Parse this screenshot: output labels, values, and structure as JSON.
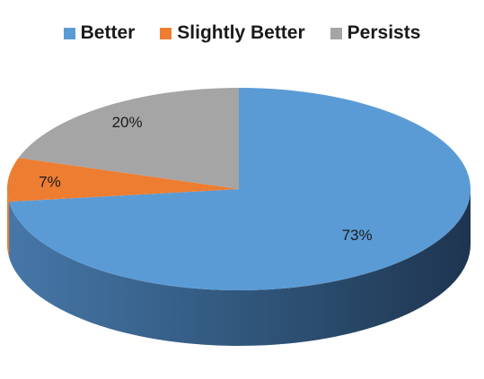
{
  "chart_data": {
    "type": "pie",
    "variant": "3d",
    "legend_placement": "top",
    "categories": [
      "Better",
      "Slightly Better",
      "Persists"
    ],
    "values": [
      73,
      7,
      20
    ],
    "data_labels": [
      "73%",
      "7%",
      "20%"
    ],
    "colors": [
      "#5b9bd5",
      "#ed7d31",
      "#a5a5a5"
    ]
  }
}
